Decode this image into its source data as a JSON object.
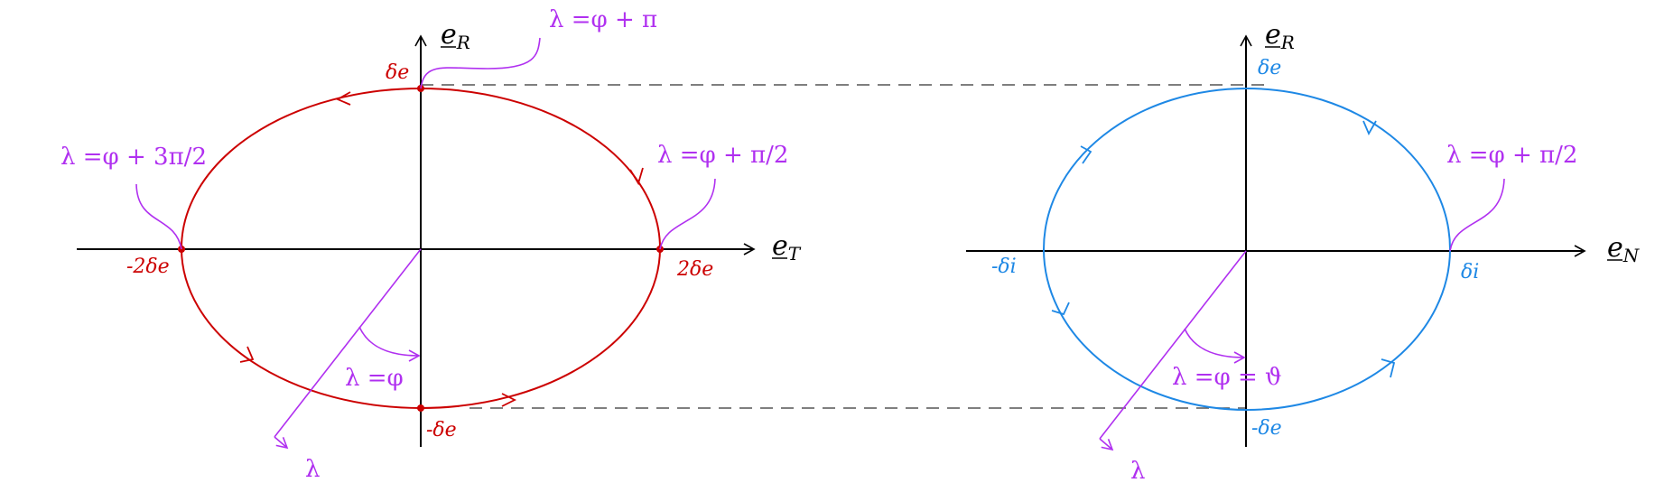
{
  "diagrams": {
    "left": {
      "vertical_axis": {
        "main": "e",
        "sub": "R"
      },
      "horizontal_axis": {
        "main": "e",
        "sub": "T"
      },
      "points": {
        "top": "δe",
        "bottom": "-δe",
        "left": "-2δe",
        "right": "2δe"
      },
      "annotations": {
        "top": "λ =φ + π",
        "right": "λ =φ + π/2",
        "left": "λ =φ + 3π/2",
        "angle": "λ =φ",
        "ray_end": "λ"
      }
    },
    "right": {
      "vertical_axis": {
        "main": "e",
        "sub": "R"
      },
      "horizontal_axis": {
        "main": "e",
        "sub": "N"
      },
      "points": {
        "top": "δe",
        "bottom": "-δe",
        "left": "-δi",
        "right": "δi"
      },
      "annotations": {
        "right": "λ =φ + π/2",
        "angle": "λ =φ = ϑ",
        "ray_end": "λ"
      }
    }
  },
  "colors": {
    "left_curve": "#cc0000",
    "right_curve": "#1e88e5",
    "annotation": "#b030f0",
    "axis": "#000000",
    "dashed": "#555555"
  }
}
